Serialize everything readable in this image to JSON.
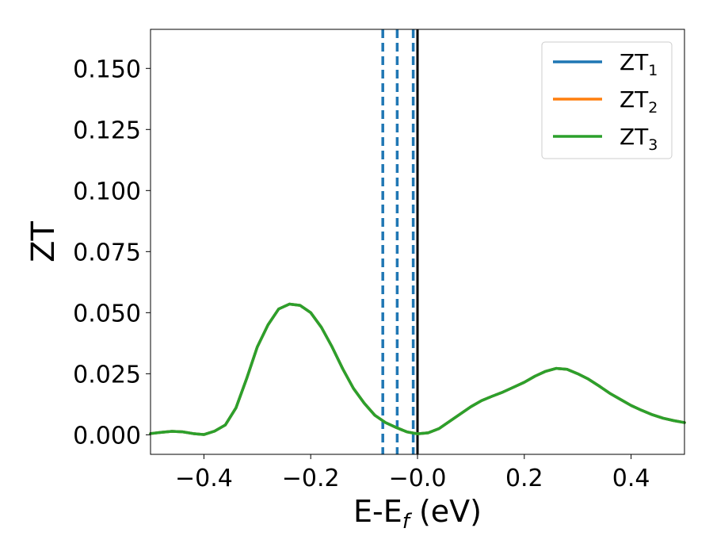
{
  "chart_data": {
    "type": "line",
    "xlabel_main": "E-E",
    "xlabel_sub": "f",
    "xlabel_unit": " (eV)",
    "ylabel": "ZT",
    "xlim": [
      -0.5,
      0.5
    ],
    "ylim": [
      -0.008,
      0.166
    ],
    "x_ticks": [
      -0.4,
      -0.2,
      0.0,
      0.2,
      0.4
    ],
    "x_tick_labels": [
      "−0.4",
      "−0.2",
      "−0.0",
      "0.2",
      "0.4"
    ],
    "y_ticks": [
      0.0,
      0.025,
      0.05,
      0.075,
      0.1,
      0.125,
      0.15
    ],
    "y_tick_labels": [
      "0.000",
      "0.025",
      "0.050",
      "0.075",
      "0.100",
      "0.125",
      "0.150"
    ],
    "grid": false,
    "legend_position": "top-right",
    "x": [
      -0.5,
      -0.48,
      -0.46,
      -0.44,
      -0.42,
      -0.4,
      -0.38,
      -0.36,
      -0.34,
      -0.32,
      -0.3,
      -0.28,
      -0.26,
      -0.24,
      -0.22,
      -0.2,
      -0.18,
      -0.16,
      -0.14,
      -0.12,
      -0.1,
      -0.08,
      -0.06,
      -0.04,
      -0.02,
      0.0,
      0.02,
      0.04,
      0.06,
      0.08,
      0.1,
      0.12,
      0.14,
      0.16,
      0.18,
      0.2,
      0.22,
      0.24,
      0.26,
      0.28,
      0.3,
      0.32,
      0.34,
      0.36,
      0.38,
      0.4,
      0.42,
      0.44,
      0.46,
      0.48,
      0.5
    ],
    "series": [
      {
        "name": "ZT",
        "sub": "1",
        "color": "#1f77b4",
        "values": [
          0.0005,
          0.001,
          0.0014,
          0.0012,
          0.0005,
          0.0001,
          0.0015,
          0.004,
          0.011,
          0.023,
          0.036,
          0.045,
          0.0515,
          0.0535,
          0.053,
          0.05,
          0.044,
          0.036,
          0.027,
          0.019,
          0.013,
          0.008,
          0.005,
          0.003,
          0.0012,
          0.0004,
          0.0008,
          0.0025,
          0.0055,
          0.0085,
          0.0115,
          0.014,
          0.0158,
          0.0175,
          0.0195,
          0.0215,
          0.024,
          0.026,
          0.0272,
          0.0268,
          0.025,
          0.0228,
          0.02,
          0.017,
          0.0145,
          0.012,
          0.01,
          0.0082,
          0.0068,
          0.0058,
          0.005
        ]
      },
      {
        "name": "ZT",
        "sub": "2",
        "color": "#ff7f0e",
        "values": [
          0.0005,
          0.001,
          0.0014,
          0.0012,
          0.0005,
          0.0001,
          0.0015,
          0.004,
          0.011,
          0.023,
          0.036,
          0.045,
          0.0515,
          0.0535,
          0.053,
          0.05,
          0.044,
          0.036,
          0.027,
          0.019,
          0.013,
          0.008,
          0.005,
          0.003,
          0.0012,
          0.0004,
          0.0008,
          0.0025,
          0.0055,
          0.0085,
          0.0115,
          0.014,
          0.0158,
          0.0175,
          0.0195,
          0.0215,
          0.024,
          0.026,
          0.0272,
          0.0268,
          0.025,
          0.0228,
          0.02,
          0.017,
          0.0145,
          0.012,
          0.01,
          0.0082,
          0.0068,
          0.0058,
          0.005
        ]
      },
      {
        "name": "ZT",
        "sub": "3",
        "color": "#2ca02c",
        "values": [
          0.0005,
          0.001,
          0.0014,
          0.0012,
          0.0005,
          0.0001,
          0.0015,
          0.004,
          0.011,
          0.023,
          0.036,
          0.045,
          0.0515,
          0.0535,
          0.053,
          0.05,
          0.044,
          0.036,
          0.027,
          0.019,
          0.013,
          0.008,
          0.005,
          0.003,
          0.0012,
          0.0004,
          0.0008,
          0.0025,
          0.0055,
          0.0085,
          0.0115,
          0.014,
          0.0158,
          0.0175,
          0.0195,
          0.0215,
          0.024,
          0.026,
          0.0272,
          0.0268,
          0.025,
          0.0228,
          0.02,
          0.017,
          0.0145,
          0.012,
          0.01,
          0.0082,
          0.0068,
          0.0058,
          0.005
        ]
      }
    ],
    "vlines": [
      {
        "x": -0.065,
        "style": "dashed",
        "color": "#1f77b4"
      },
      {
        "x": -0.038,
        "style": "dashed",
        "color": "#1f77b4"
      },
      {
        "x": -0.008,
        "style": "dashed",
        "color": "#1f77b4"
      },
      {
        "x": 0.0,
        "style": "solid",
        "color": "#000000"
      }
    ]
  }
}
